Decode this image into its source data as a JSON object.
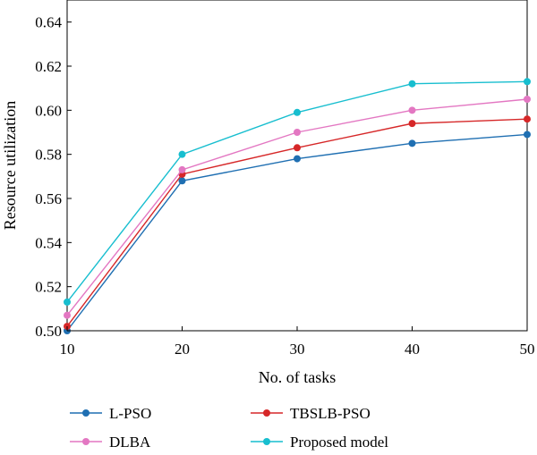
{
  "chart_data": {
    "type": "line",
    "xlabel": "No. of tasks",
    "ylabel": "Resource utilization",
    "x": [
      10,
      20,
      30,
      40,
      50
    ],
    "xlim": [
      10,
      50
    ],
    "ylim": [
      0.5,
      0.65
    ],
    "xticks": [
      "10",
      "20",
      "30",
      "40",
      "50"
    ],
    "yticks": [
      "0.50",
      "0.52",
      "0.54",
      "0.56",
      "0.58",
      "0.60",
      "0.62",
      "0.64"
    ],
    "grid": false,
    "legend_position": "bottom",
    "series": [
      {
        "name": "L-PSO",
        "color": "#1f6fb2",
        "values": [
          0.5,
          0.568,
          0.578,
          0.585,
          0.589
        ]
      },
      {
        "name": "TBSLB-PSO",
        "color": "#d62728",
        "values": [
          0.502,
          0.571,
          0.583,
          0.594,
          0.596
        ]
      },
      {
        "name": "DLBA",
        "color": "#e377c2",
        "values": [
          0.507,
          0.573,
          0.59,
          0.6,
          0.605
        ]
      },
      {
        "name": "Proposed model",
        "color": "#17becf",
        "values": [
          0.513,
          0.58,
          0.599,
          0.612,
          0.613
        ]
      }
    ]
  }
}
